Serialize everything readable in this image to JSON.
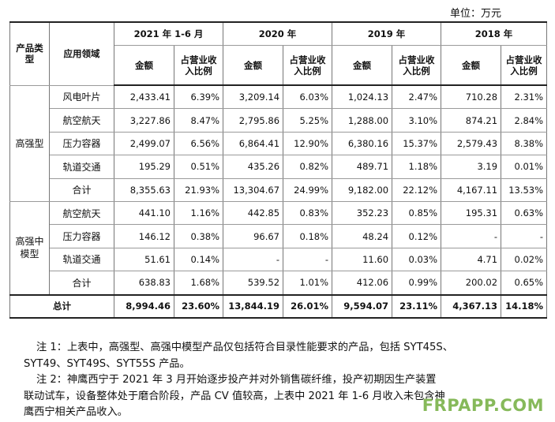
{
  "unit_label": "单位：万元",
  "header": {
    "category_col": "产品类型",
    "application_col": "应用领域",
    "periods": [
      "2021 年 1-6 月",
      "2020 年",
      "2019 年",
      "2018 年"
    ],
    "amount_label": "金额",
    "ratio_label": "占营业收入比例"
  },
  "groups": [
    {
      "category": "高强型",
      "rows": [
        {
          "app": "风电叶片",
          "values": [
            "2,433.41",
            "6.39%",
            "3,209.14",
            "6.03%",
            "1,024.13",
            "2.47%",
            "710.28",
            "2.31%"
          ]
        },
        {
          "app": "航空航天",
          "values": [
            "3,227.86",
            "8.47%",
            "2,795.86",
            "5.25%",
            "1,288.00",
            "3.10%",
            "874.21",
            "2.84%"
          ]
        },
        {
          "app": "压力容器",
          "values": [
            "2,499.07",
            "6.56%",
            "6,864.41",
            "12.90%",
            "6,380.16",
            "15.37%",
            "2,579.43",
            "8.38%"
          ]
        },
        {
          "app": "轨道交通",
          "values": [
            "195.29",
            "0.51%",
            "435.26",
            "0.82%",
            "489.71",
            "1.18%",
            "3.19",
            "0.01%"
          ]
        },
        {
          "app": "合计",
          "values": [
            "8,355.63",
            "21.93%",
            "13,304.67",
            "24.99%",
            "9,182.00",
            "22.12%",
            "4,167.11",
            "13.53%"
          ]
        }
      ]
    },
    {
      "category": "高强中模型",
      "rows": [
        {
          "app": "航空航天",
          "values": [
            "441.10",
            "1.16%",
            "442.85",
            "0.83%",
            "352.23",
            "0.85%",
            "195.31",
            "0.63%"
          ]
        },
        {
          "app": "压力容器",
          "values": [
            "146.12",
            "0.38%",
            "96.67",
            "0.18%",
            "48.24",
            "0.12%",
            "-",
            "-"
          ]
        },
        {
          "app": "轨道交通",
          "values": [
            "51.61",
            "0.14%",
            "-",
            "-",
            "11.60",
            "0.03%",
            "4.71",
            "0.02%"
          ]
        },
        {
          "app": "合计",
          "values": [
            "638.83",
            "1.68%",
            "539.52",
            "1.01%",
            "412.06",
            "0.99%",
            "200.02",
            "0.65%"
          ]
        }
      ]
    }
  ],
  "total": {
    "label": "总计",
    "values": [
      "8,994.46",
      "23.60%",
      "13,844.19",
      "26.01%",
      "9,594.07",
      "23.11%",
      "4,367.13",
      "14.18%"
    ]
  },
  "notes": [
    "注 1：上表中，高强型、高强中模型产品仅包括符合目录性能要求的产品，包括 SYT45S、",
    "SYT49、SYT49S、SYT55S 产品。",
    "注 2：神鹰西宁于 2021 年 3 月开始逐步投产并对外销售碳纤维，投产初期因生产装置",
    "联动试车，设备整体处于磨合阶段，产品 CV 值较高，上表中 2021 年 1-6 月收入未包含神",
    "鹰西宁相关产品收入。"
  ],
  "watermark": "FRPAPP.COM"
}
